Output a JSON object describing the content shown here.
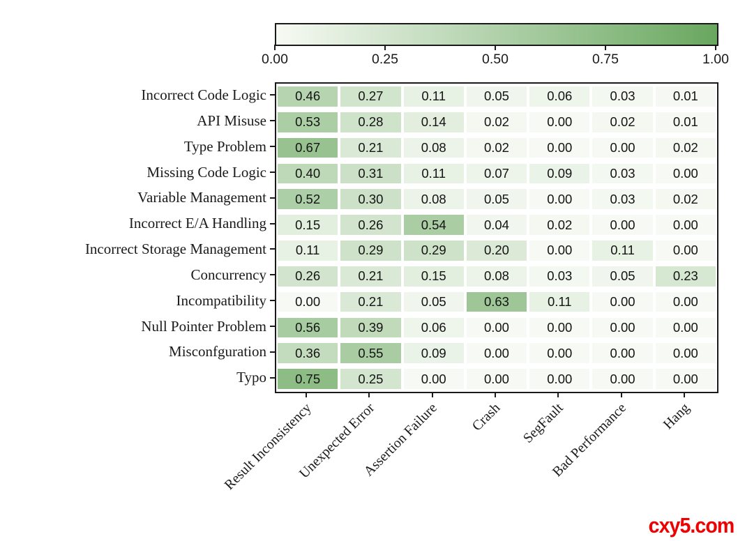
{
  "watermark": {
    "text": "cxy5.com",
    "color": "#ee0000"
  },
  "chart_data": {
    "type": "heatmap",
    "title": "",
    "xlabel": "",
    "ylabel": "",
    "rows": [
      "Incorrect Code Logic",
      "API Misuse",
      "Type Problem",
      "Missing Code Logic",
      "Variable Management",
      "Incorrect E/A Handling",
      "Incorrect Storage Management",
      "Concurrency",
      "Incompatibility",
      "Null Pointer Problem",
      "Misconfguration",
      "Typo"
    ],
    "columns": [
      "Result Inconsistency",
      "Unexpected Error",
      "Assertion Failure",
      "Crash",
      "SegFault",
      "Bad Performance",
      "Hang"
    ],
    "values": [
      [
        0.46,
        0.27,
        0.11,
        0.05,
        0.06,
        0.03,
        0.01
      ],
      [
        0.53,
        0.28,
        0.14,
        0.02,
        0.0,
        0.02,
        0.01
      ],
      [
        0.67,
        0.21,
        0.08,
        0.02,
        0.0,
        0.0,
        0.02
      ],
      [
        0.4,
        0.31,
        0.11,
        0.07,
        0.09,
        0.03,
        0.0
      ],
      [
        0.52,
        0.3,
        0.08,
        0.05,
        0.0,
        0.03,
        0.02
      ],
      [
        0.15,
        0.26,
        0.54,
        0.04,
        0.02,
        0.0,
        0.0
      ],
      [
        0.11,
        0.29,
        0.29,
        0.2,
        0.0,
        0.11,
        0.0
      ],
      [
        0.26,
        0.21,
        0.15,
        0.08,
        0.03,
        0.05,
        0.23
      ],
      [
        0.0,
        0.21,
        0.05,
        0.63,
        0.11,
        0.0,
        0.0
      ],
      [
        0.56,
        0.39,
        0.06,
        0.0,
        0.0,
        0.0,
        0.0
      ],
      [
        0.36,
        0.55,
        0.09,
        0.0,
        0.0,
        0.0,
        0.0
      ],
      [
        0.75,
        0.25,
        0.0,
        0.0,
        0.0,
        0.0,
        0.0
      ]
    ],
    "value_format_decimals": 2,
    "colorbar": {
      "position": "top",
      "min": 0.0,
      "max": 1.0,
      "tick_values": [
        0.0,
        0.25,
        0.5,
        0.75,
        1.0
      ],
      "tick_labels": [
        "0.00",
        "0.25",
        "0.50",
        "0.75",
        "1.00"
      ],
      "cmap_low": "#f7faf4",
      "cmap_high": "#69a75f"
    },
    "grid": false,
    "cell_gap_horizontal": true,
    "cell_gap_vertical": true
  }
}
